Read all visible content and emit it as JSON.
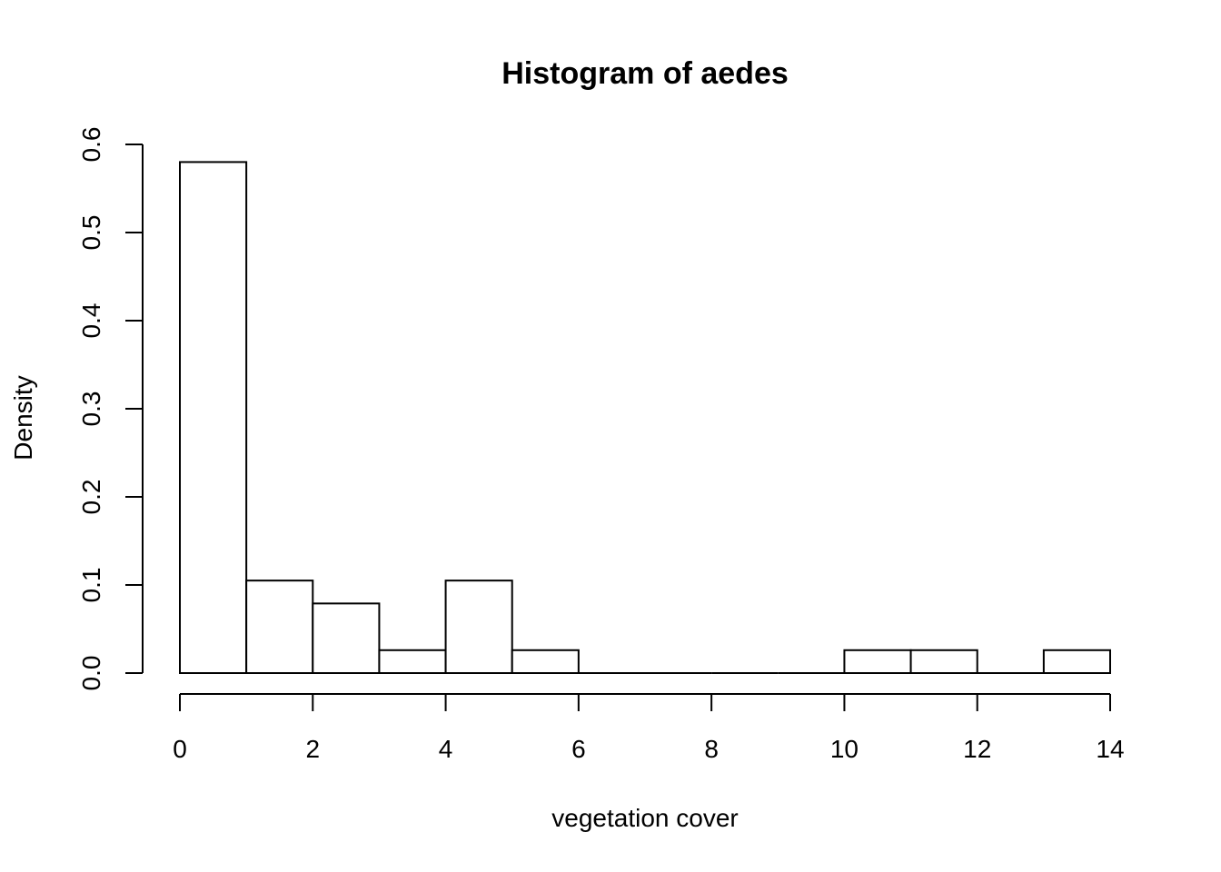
{
  "chart_data": {
    "type": "bar",
    "title": "Histogram of aedes",
    "xlabel": "vegetation cover",
    "ylabel": "Density",
    "bins": [
      {
        "start": 0,
        "end": 1,
        "density": 0.58
      },
      {
        "start": 1,
        "end": 2,
        "density": 0.105
      },
      {
        "start": 2,
        "end": 3,
        "density": 0.079
      },
      {
        "start": 3,
        "end": 4,
        "density": 0.026
      },
      {
        "start": 4,
        "end": 5,
        "density": 0.105
      },
      {
        "start": 5,
        "end": 6,
        "density": 0.026
      },
      {
        "start": 6,
        "end": 7,
        "density": 0
      },
      {
        "start": 7,
        "end": 8,
        "density": 0
      },
      {
        "start": 8,
        "end": 9,
        "density": 0
      },
      {
        "start": 9,
        "end": 10,
        "density": 0
      },
      {
        "start": 10,
        "end": 11,
        "density": 0.026
      },
      {
        "start": 11,
        "end": 12,
        "density": 0.026
      },
      {
        "start": 12,
        "end": 13,
        "density": 0
      },
      {
        "start": 13,
        "end": 14,
        "density": 0.026
      }
    ],
    "xlim": [
      0,
      14
    ],
    "ylim": [
      0,
      0.6
    ],
    "x_ticks": [
      0,
      2,
      4,
      6,
      8,
      10,
      12,
      14
    ],
    "x_tick_labels": [
      "0",
      "2",
      "4",
      "6",
      "8",
      "10",
      "12",
      "14"
    ],
    "y_ticks": [
      0,
      0.1,
      0.2,
      0.3,
      0.4,
      0.5,
      0.6
    ],
    "y_tick_labels": [
      "0.0",
      "0.1",
      "0.2",
      "0.3",
      "0.4",
      "0.5",
      "0.6"
    ],
    "grid": false,
    "legend": "none",
    "colors": {
      "bar_fill": "#ffffff",
      "bar_stroke": "#000000",
      "background": "#ffffff"
    }
  }
}
